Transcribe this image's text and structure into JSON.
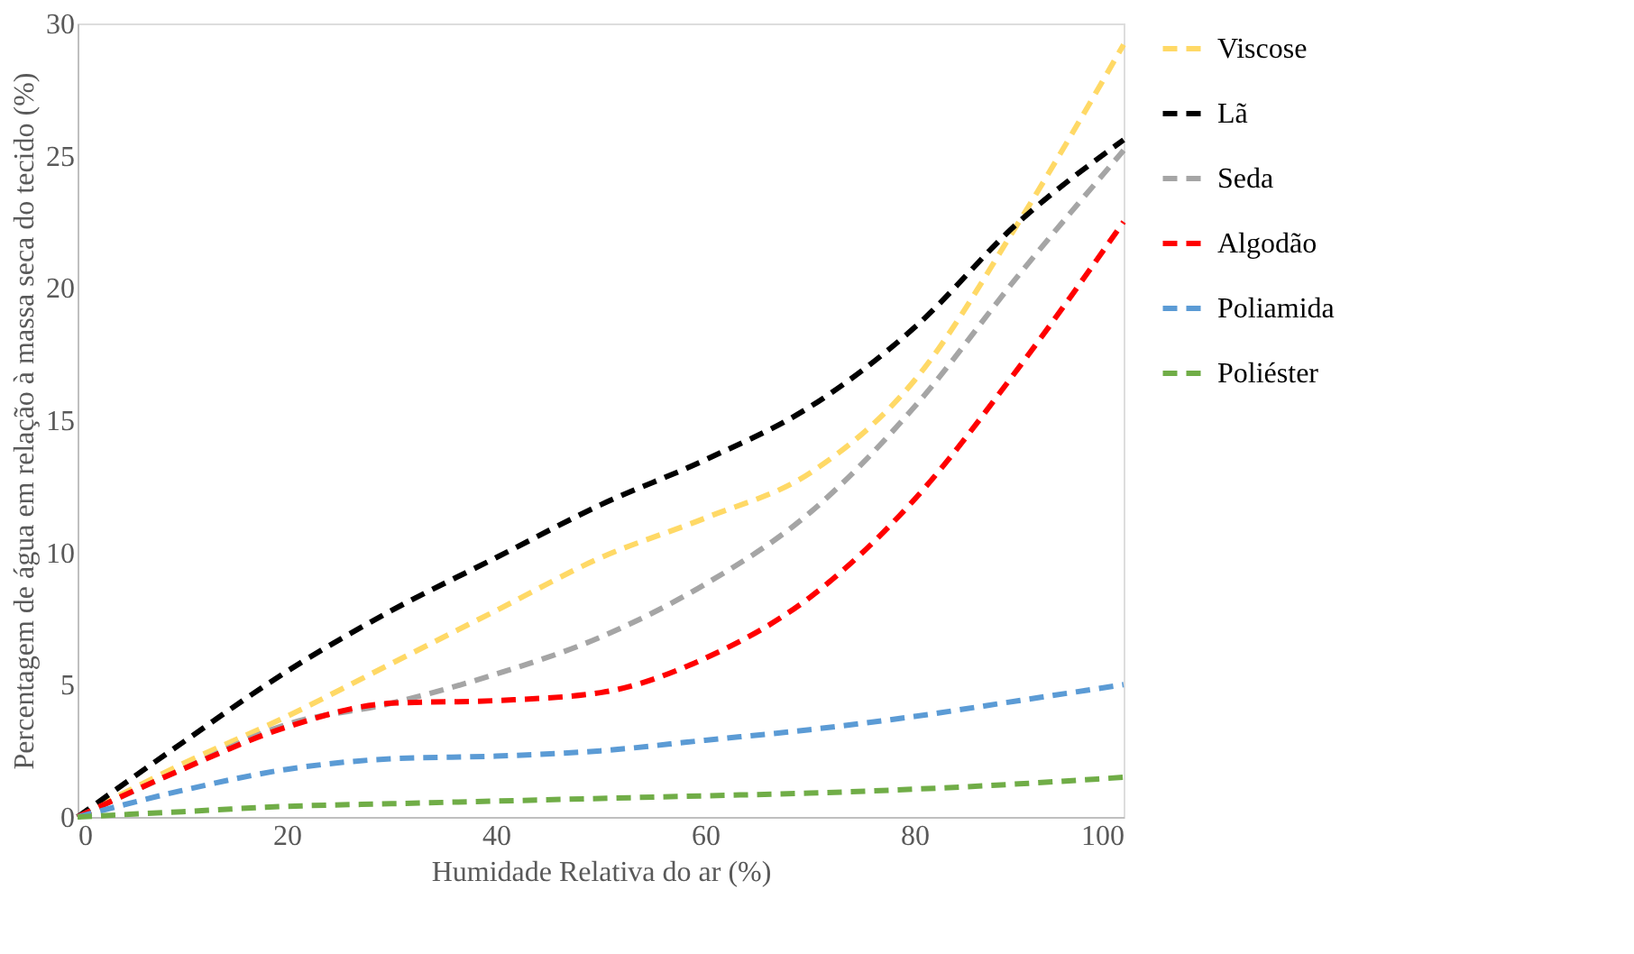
{
  "chart_data": {
    "type": "line",
    "xlabel": "Humidade Relativa do ar (%)",
    "ylabel": "Percentagem de água em relação à massa seca do tecido (%)",
    "x": [
      0,
      10,
      20,
      30,
      40,
      50,
      60,
      70,
      80,
      90,
      100
    ],
    "series": [
      {
        "name": "Viscose",
        "color": "#ffd966",
        "values": [
          0,
          2,
          3.8,
          5.8,
          7.8,
          9.8,
          11.3,
          13,
          16.5,
          22.5,
          29.2
        ]
      },
      {
        "name": "Lã",
        "color": "#000000",
        "values": [
          0,
          2.8,
          5.5,
          7.8,
          9.8,
          11.8,
          13.5,
          15.5,
          18.5,
          22.5,
          25.6
        ]
      },
      {
        "name": "Seda",
        "color": "#a5a5a5",
        "values": [
          0,
          1.8,
          3.5,
          4.3,
          5.4,
          6.8,
          8.8,
          11.5,
          15.5,
          20.5,
          25.2
        ]
      },
      {
        "name": "Algodão",
        "color": "#ff0000",
        "values": [
          0,
          1.8,
          3.4,
          4.3,
          4.4,
          4.7,
          6,
          8.3,
          12,
          17,
          22.5
        ]
      },
      {
        "name": "Poliamida",
        "color": "#5b9bd5",
        "values": [
          0,
          1,
          1.8,
          2.2,
          2.3,
          2.5,
          2.9,
          3.3,
          3.8,
          4.4,
          5
        ]
      },
      {
        "name": "Poliéster",
        "color": "#70ad47",
        "values": [
          0,
          0.2,
          0.4,
          0.5,
          0.6,
          0.7,
          0.8,
          0.9,
          1.05,
          1.25,
          1.5
        ]
      }
    ],
    "xlim": [
      0,
      100
    ],
    "xticks": [
      0,
      20,
      40,
      60,
      80,
      100
    ],
    "ylim": [
      0,
      30
    ],
    "yticks": [
      0,
      5,
      10,
      15,
      20,
      25,
      30
    ],
    "grid": false,
    "legend": "right",
    "marker": "none",
    "line_style": "dashed"
  }
}
